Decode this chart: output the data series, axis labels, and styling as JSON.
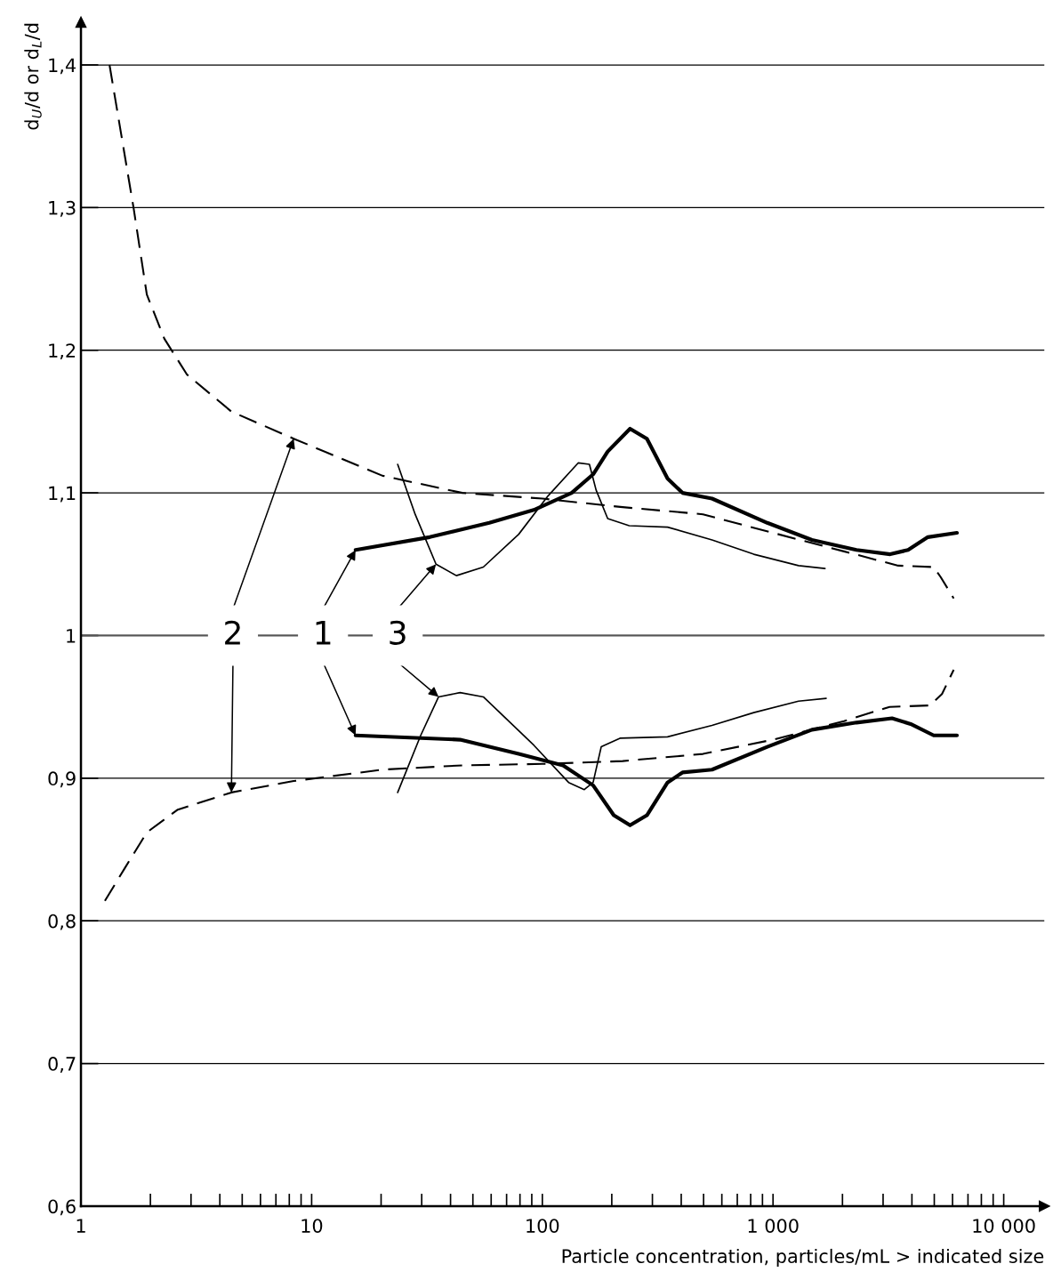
{
  "chart_data": {
    "type": "line",
    "log": "x",
    "grid": "y",
    "xlabel": "Particle concentration, particles/mL > indicated size",
    "ylabel": "d$_{U}$/d or d$_{L}$/d",
    "xlim": [
      1,
      15000
    ],
    "ylim": [
      0.6,
      1.43
    ],
    "xticks": [
      1,
      {
        "value": 2,
        "label": null
      },
      {
        "value": 3,
        "label": null
      },
      {
        "value": 4,
        "label": null
      },
      {
        "value": 5,
        "label": null
      },
      {
        "value": 6,
        "label": null
      },
      {
        "value": 7,
        "label": null
      },
      {
        "value": 8,
        "label": null
      },
      {
        "value": 9,
        "label": null
      },
      10,
      {
        "value": 20,
        "label": null
      },
      {
        "value": 30,
        "label": null
      },
      {
        "value": 40,
        "label": null
      },
      {
        "value": 50,
        "label": null
      },
      {
        "value": 60,
        "label": null
      },
      {
        "value": 70,
        "label": null
      },
      {
        "value": 80,
        "label": null
      },
      {
        "value": 90,
        "label": null
      },
      100,
      {
        "value": 200,
        "label": null
      },
      {
        "value": 300,
        "label": null
      },
      {
        "value": 400,
        "label": null
      },
      {
        "value": 500,
        "label": null
      },
      {
        "value": 600,
        "label": null
      },
      {
        "value": 700,
        "label": null
      },
      {
        "value": 800,
        "label": null
      },
      {
        "value": 900,
        "label": null
      },
      {
        "value": 1000,
        "label": "1 000"
      },
      {
        "value": 2000,
        "label": null
      },
      {
        "value": 3000,
        "label": null
      },
      {
        "value": 4000,
        "label": null
      },
      {
        "value": 5000,
        "label": null
      },
      {
        "value": 6000,
        "label": null
      },
      {
        "value": 7000,
        "label": null
      },
      {
        "value": 8000,
        "label": null
      },
      {
        "value": 9000,
        "label": null
      },
      {
        "value": 10000,
        "label": "10 000"
      }
    ],
    "yticks": [
      {
        "value": 0.6,
        "label": "0,6"
      },
      {
        "value": 0.7,
        "label": "0,7"
      },
      {
        "value": 0.8,
        "label": "0,8"
      },
      {
        "value": 0.9,
        "label": "0,9"
      },
      1,
      {
        "value": 1.1,
        "label": "1,1"
      },
      {
        "value": 1.2,
        "label": "1,2"
      },
      {
        "value": 1.3,
        "label": "1,3"
      },
      {
        "value": 1.4,
        "label": "1,4"
      }
    ],
    "ref_lines": [
      {
        "axis": "y",
        "value": 1,
        "label": null,
        "color": "#555555"
      }
    ],
    "annotations": [
      {
        "text": "2",
        "x": 4.56,
        "y": 1
      },
      {
        "text": "1",
        "x": 11.2,
        "y": 1
      },
      {
        "text": "3",
        "x": 23.6,
        "y": 1
      }
    ],
    "series": [
      {
        "color": "#000000",
        "line_style": "dashed",
        "x": [
          1.33,
          1.69,
          1.93,
          2.3,
          2.88,
          4.49,
          8.36,
          20.3,
          45,
          100,
          223,
          497,
          1000,
          2030,
          3490,
          4970,
          5330,
          6070
        ],
        "values": [
          1.4,
          1.3,
          1.239,
          1.208,
          1.183,
          1.157,
          1.138,
          1.112,
          1.1,
          1.096,
          1.09,
          1.085,
          1.072,
          1.059,
          1.049,
          1.048,
          1.041,
          1.026
        ]
      },
      {
        "color": "#000000",
        "line_style": "dashed",
        "x": [
          1.27,
          1.55,
          1.93,
          2.63,
          4.49,
          8.36,
          20.3,
          45,
          100,
          223,
          497,
          1000,
          2030,
          3200,
          4780,
          5400,
          6070
        ],
        "values": [
          0.814,
          0.837,
          0.862,
          0.878,
          0.89,
          0.898,
          0.906,
          0.909,
          0.91,
          0.912,
          0.917,
          0.927,
          0.94,
          0.95,
          0.951,
          0.959,
          0.976
        ]
      },
      {
        "color": "#000000",
        "line_style": "solid",
        "x": [
          15.5,
          32.5,
          58.9,
          91.8,
          134,
          166,
          192,
          240,
          284,
          349,
          405,
          544,
          944,
          1475,
          2300,
          3220,
          3850,
          4690,
          6270
        ],
        "values": [
          1.06,
          1.069,
          1.079,
          1.088,
          1.1,
          1.113,
          1.129,
          1.145,
          1.138,
          1.11,
          1.1,
          1.096,
          1.079,
          1.067,
          1.06,
          1.057,
          1.06,
          1.069,
          1.072
        ]
      },
      {
        "color": "#000000",
        "line_style": "solid",
        "x": [
          15.5,
          44,
          79,
          123,
          166,
          204,
          240,
          284,
          349,
          405,
          544,
          944,
          1475,
          2300,
          3280,
          3950,
          4970,
          6270
        ],
        "values": [
          0.93,
          0.927,
          0.917,
          0.909,
          0.895,
          0.874,
          0.867,
          0.874,
          0.897,
          0.904,
          0.906,
          0.922,
          0.934,
          0.939,
          0.942,
          0.938,
          0.93,
          0.93
        ]
      },
      {
        "color": "#000000",
        "line_style": "solid",
        "x": [
          23.6,
          28.1,
          34.6,
          42.4,
          55.5,
          79,
          106,
          143,
          160,
          171,
          192,
          238,
          349,
          544,
          825,
          1290,
          1680
        ],
        "values": [
          1.12,
          1.085,
          1.05,
          1.042,
          1.048,
          1.071,
          1.098,
          1.121,
          1.12,
          1.102,
          1.082,
          1.077,
          1.076,
          1.067,
          1.057,
          1.049,
          1.047
        ]
      },
      {
        "color": "#000000",
        "line_style": "solid",
        "x": [
          23.6,
          29.7,
          35.5,
          44,
          55.5,
          92,
          130,
          152,
          166,
          180,
          217,
          349,
          544,
          825,
          1290,
          1700
        ],
        "values": [
          0.89,
          0.93,
          0.957,
          0.96,
          0.957,
          0.923,
          0.897,
          0.892,
          0.897,
          0.922,
          0.928,
          0.929,
          0.937,
          0.946,
          0.954,
          0.956
        ]
      }
    ]
  }
}
